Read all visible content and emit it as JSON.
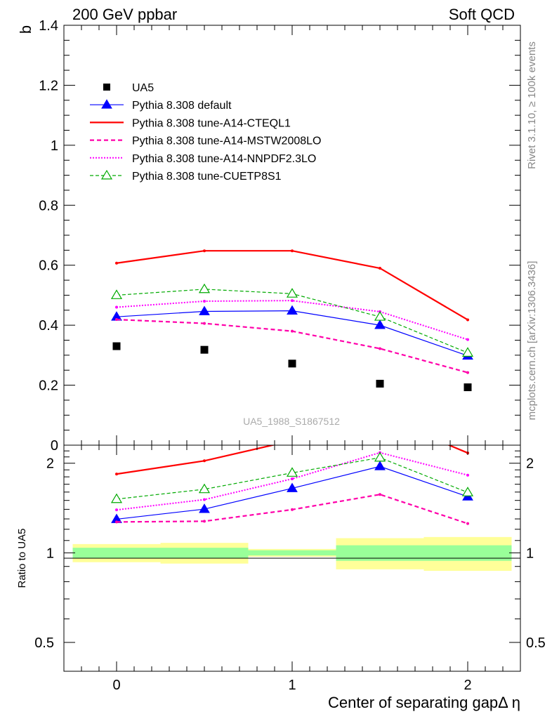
{
  "header": {
    "left": "200 GeV ppbar",
    "right": "Soft QCD"
  },
  "side_labels": {
    "rivet": "Rivet 3.1.10, ≥ 100k events",
    "mcplots": "mcplots.cern.ch [arXiv:1306.3436]"
  },
  "watermark": "UA5_1988_S1867512",
  "axes": {
    "ylabel_top": "b",
    "ylabel_bottom": "Ratio to UA5",
    "xlabel": "Center of separating gapΔ η"
  },
  "chart_data": {
    "type": "line",
    "x": [
      0,
      0.5,
      1,
      1.5,
      2
    ],
    "xlim": [
      -0.3,
      2.3
    ],
    "xticks": [
      0,
      1,
      2
    ],
    "xtick_labels": [
      "0",
      "1",
      "2"
    ],
    "top_panel": {
      "ylim": [
        0,
        1.4
      ],
      "yticks": [
        0,
        0.2,
        0.4,
        0.6,
        0.8,
        1,
        1.2,
        1.4
      ],
      "ytick_labels": [
        "0",
        "0.2",
        "0.4",
        "0.6",
        "0.8",
        "1",
        "1.2",
        "1.4"
      ]
    },
    "ratio_panel": {
      "ylim": [
        0.4,
        2.3
      ],
      "scale": "log",
      "yticks": [
        0.5,
        1,
        2
      ],
      "ytick_labels": [
        "0.5",
        "1",
        "2"
      ],
      "reference_bands": {
        "x_edges": [
          [
            -0.25,
            0.25
          ],
          [
            0.25,
            0.75
          ],
          [
            0.75,
            1.25
          ],
          [
            1.25,
            1.75
          ],
          [
            1.75,
            2.25
          ]
        ],
        "inner": [
          [
            0.96,
            1.04
          ],
          [
            0.96,
            1.04
          ],
          [
            0.98,
            1.02
          ],
          [
            0.94,
            1.06
          ],
          [
            0.94,
            1.06
          ]
        ],
        "outer": [
          [
            0.93,
            1.07
          ],
          [
            0.92,
            1.08
          ],
          [
            0.97,
            1.03
          ],
          [
            0.88,
            1.12
          ],
          [
            0.87,
            1.13
          ]
        ],
        "inner_color": "#99ff99",
        "outer_color": "#ffff99"
      }
    },
    "data": {
      "name": "UA5",
      "values": [
        0.33,
        0.318,
        0.272,
        0.205,
        0.193
      ],
      "color": "#000000"
    },
    "series": [
      {
        "name": "Pythia 8.308 default",
        "color": "#0000ff",
        "dash": "",
        "width": 1.2,
        "marker": "filled-triangle",
        "values": [
          0.428,
          0.446,
          0.448,
          0.4,
          0.298
        ]
      },
      {
        "name": "Pythia 8.308 tune-A14-CTEQL1",
        "color": "#ff0000",
        "dash": "",
        "width": 2.2,
        "marker": "",
        "values": [
          0.607,
          0.648,
          0.648,
          0.59,
          0.418
        ]
      },
      {
        "name": "Pythia 8.308 tune-A14-MSTW2008LO",
        "color": "#ff00aa",
        "dash": "6,4",
        "width": 2.2,
        "marker": "",
        "values": [
          0.419,
          0.406,
          0.38,
          0.322,
          0.242
        ]
      },
      {
        "name": "Pythia 8.308 tune-A14-NNPDF2.3LO",
        "color": "#ff00ff",
        "dash": "2,2",
        "width": 2.0,
        "marker": "",
        "values": [
          0.46,
          0.48,
          0.482,
          0.445,
          0.352
        ]
      },
      {
        "name": "Pythia 8.308 tune-CUETP8S1",
        "color": "#00aa00",
        "dash": "5,3",
        "width": 1.2,
        "marker": "open-triangle",
        "values": [
          0.5,
          0.52,
          0.505,
          0.428,
          0.308
        ]
      }
    ]
  }
}
